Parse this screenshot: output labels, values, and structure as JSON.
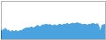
{
  "chart_data": {
    "type": "area",
    "values": [
      55,
      45,
      60,
      50,
      65,
      58,
      48,
      55,
      45,
      42,
      48,
      52,
      44,
      47,
      50,
      48,
      44,
      47,
      52,
      49,
      53,
      57,
      60,
      64,
      66,
      64,
      68,
      65,
      70,
      72,
      68,
      65,
      70,
      74,
      78,
      80,
      75,
      72,
      78,
      82,
      84,
      82,
      86,
      88,
      84,
      82,
      86,
      84,
      80,
      78,
      82,
      84,
      80,
      78,
      82,
      86,
      88,
      84,
      82,
      86,
      88,
      86,
      90,
      92,
      88,
      86,
      90,
      92,
      94,
      92,
      90,
      94,
      96,
      94,
      92,
      90,
      88,
      86,
      84,
      88,
      86,
      84,
      82,
      86,
      88,
      86,
      90,
      92,
      90,
      88,
      86,
      90,
      88,
      72,
      48,
      62,
      84,
      82,
      86,
      88
    ],
    "color": "#4aa3df",
    "ylim": [
      0,
      220
    ],
    "tick_labels": false
  }
}
